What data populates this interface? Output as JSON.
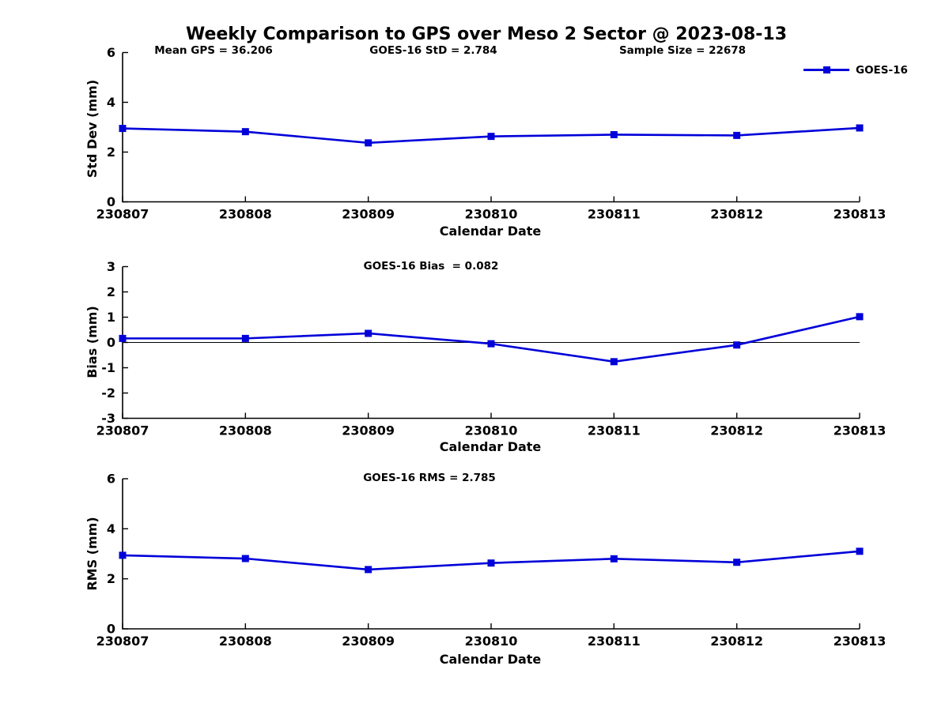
{
  "title": "Weekly Comparison to GPS over Meso 2 Sector @ 2023-08-13",
  "header_stats": {
    "mean_gps": "Mean GPS = 36.206",
    "goes16_std": "GOES-16 StD = 2.784",
    "sample_size": "Sample Size = 22678"
  },
  "legend": {
    "label": "GOES-16",
    "marker": "filled-square",
    "position": "upper-right"
  },
  "colors": {
    "line": "#0000d9",
    "axis": "#000000",
    "zero_line": "#000000",
    "text": "#000000",
    "background": "#ffffff"
  },
  "chart_data": [
    {
      "id": "std-dev",
      "type": "line",
      "xlabel": "Calendar Date",
      "ylabel": "Std Dev (mm)",
      "ylim": [
        0,
        6
      ],
      "yticks": [
        0,
        2,
        4,
        6
      ],
      "grid": false,
      "categories": [
        "230807",
        "230808",
        "230809",
        "230810",
        "230811",
        "230812",
        "230813"
      ],
      "series": [
        {
          "name": "GOES-16",
          "values": [
            2.95,
            2.82,
            2.37,
            2.63,
            2.7,
            2.67,
            2.97
          ]
        }
      ]
    },
    {
      "id": "bias",
      "type": "line",
      "subtitle": "GOES-16 Bias  = 0.082",
      "xlabel": "Calendar Date",
      "ylabel": "Bias (mm)",
      "ylim": [
        -3,
        3
      ],
      "yticks": [
        -3,
        -2,
        -1,
        0,
        1,
        2,
        3
      ],
      "zero_line": true,
      "grid": false,
      "categories": [
        "230807",
        "230808",
        "230809",
        "230810",
        "230811",
        "230812",
        "230813"
      ],
      "series": [
        {
          "name": "GOES-16",
          "values": [
            0.16,
            0.16,
            0.36,
            -0.05,
            -0.76,
            -0.1,
            1.02
          ]
        }
      ]
    },
    {
      "id": "rms",
      "type": "line",
      "subtitle": "GOES-16 RMS = 2.785",
      "xlabel": "Calendar Date",
      "ylabel": "RMS (mm)",
      "ylim": [
        0,
        6
      ],
      "yticks": [
        0,
        2,
        4,
        6
      ],
      "grid": false,
      "categories": [
        "230807",
        "230808",
        "230809",
        "230810",
        "230811",
        "230812",
        "230813"
      ],
      "series": [
        {
          "name": "GOES-16",
          "values": [
            2.94,
            2.81,
            2.37,
            2.63,
            2.8,
            2.66,
            3.1
          ]
        }
      ]
    }
  ]
}
